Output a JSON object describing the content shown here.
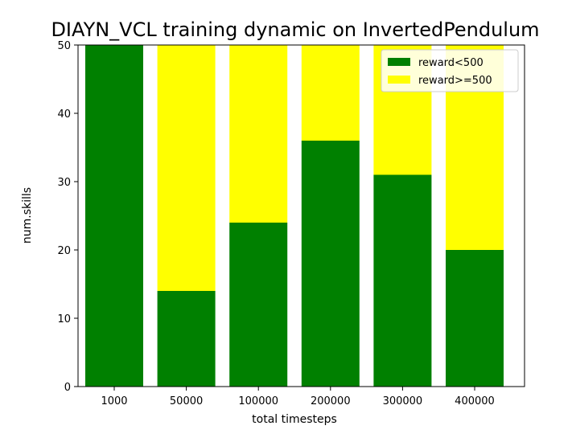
{
  "chart_data": {
    "type": "bar",
    "stacked": true,
    "title": "DIAYN_VCL training dynamic on InvertedPendulum",
    "xlabel": "total timesteps",
    "ylabel": "num.skills",
    "categories": [
      "1000",
      "50000",
      "100000",
      "200000",
      "300000",
      "400000"
    ],
    "ylim": [
      0,
      50
    ],
    "yticks": [
      0,
      10,
      20,
      30,
      40,
      50
    ],
    "grid": false,
    "legend_position": "upper right",
    "series": [
      {
        "name": "reward<500",
        "color": "#008000",
        "values": [
          50,
          14,
          24,
          36,
          31,
          20
        ]
      },
      {
        "name": "reward>=500",
        "color": "#ffff00",
        "values": [
          0,
          36,
          26,
          14,
          19,
          30
        ]
      }
    ]
  }
}
